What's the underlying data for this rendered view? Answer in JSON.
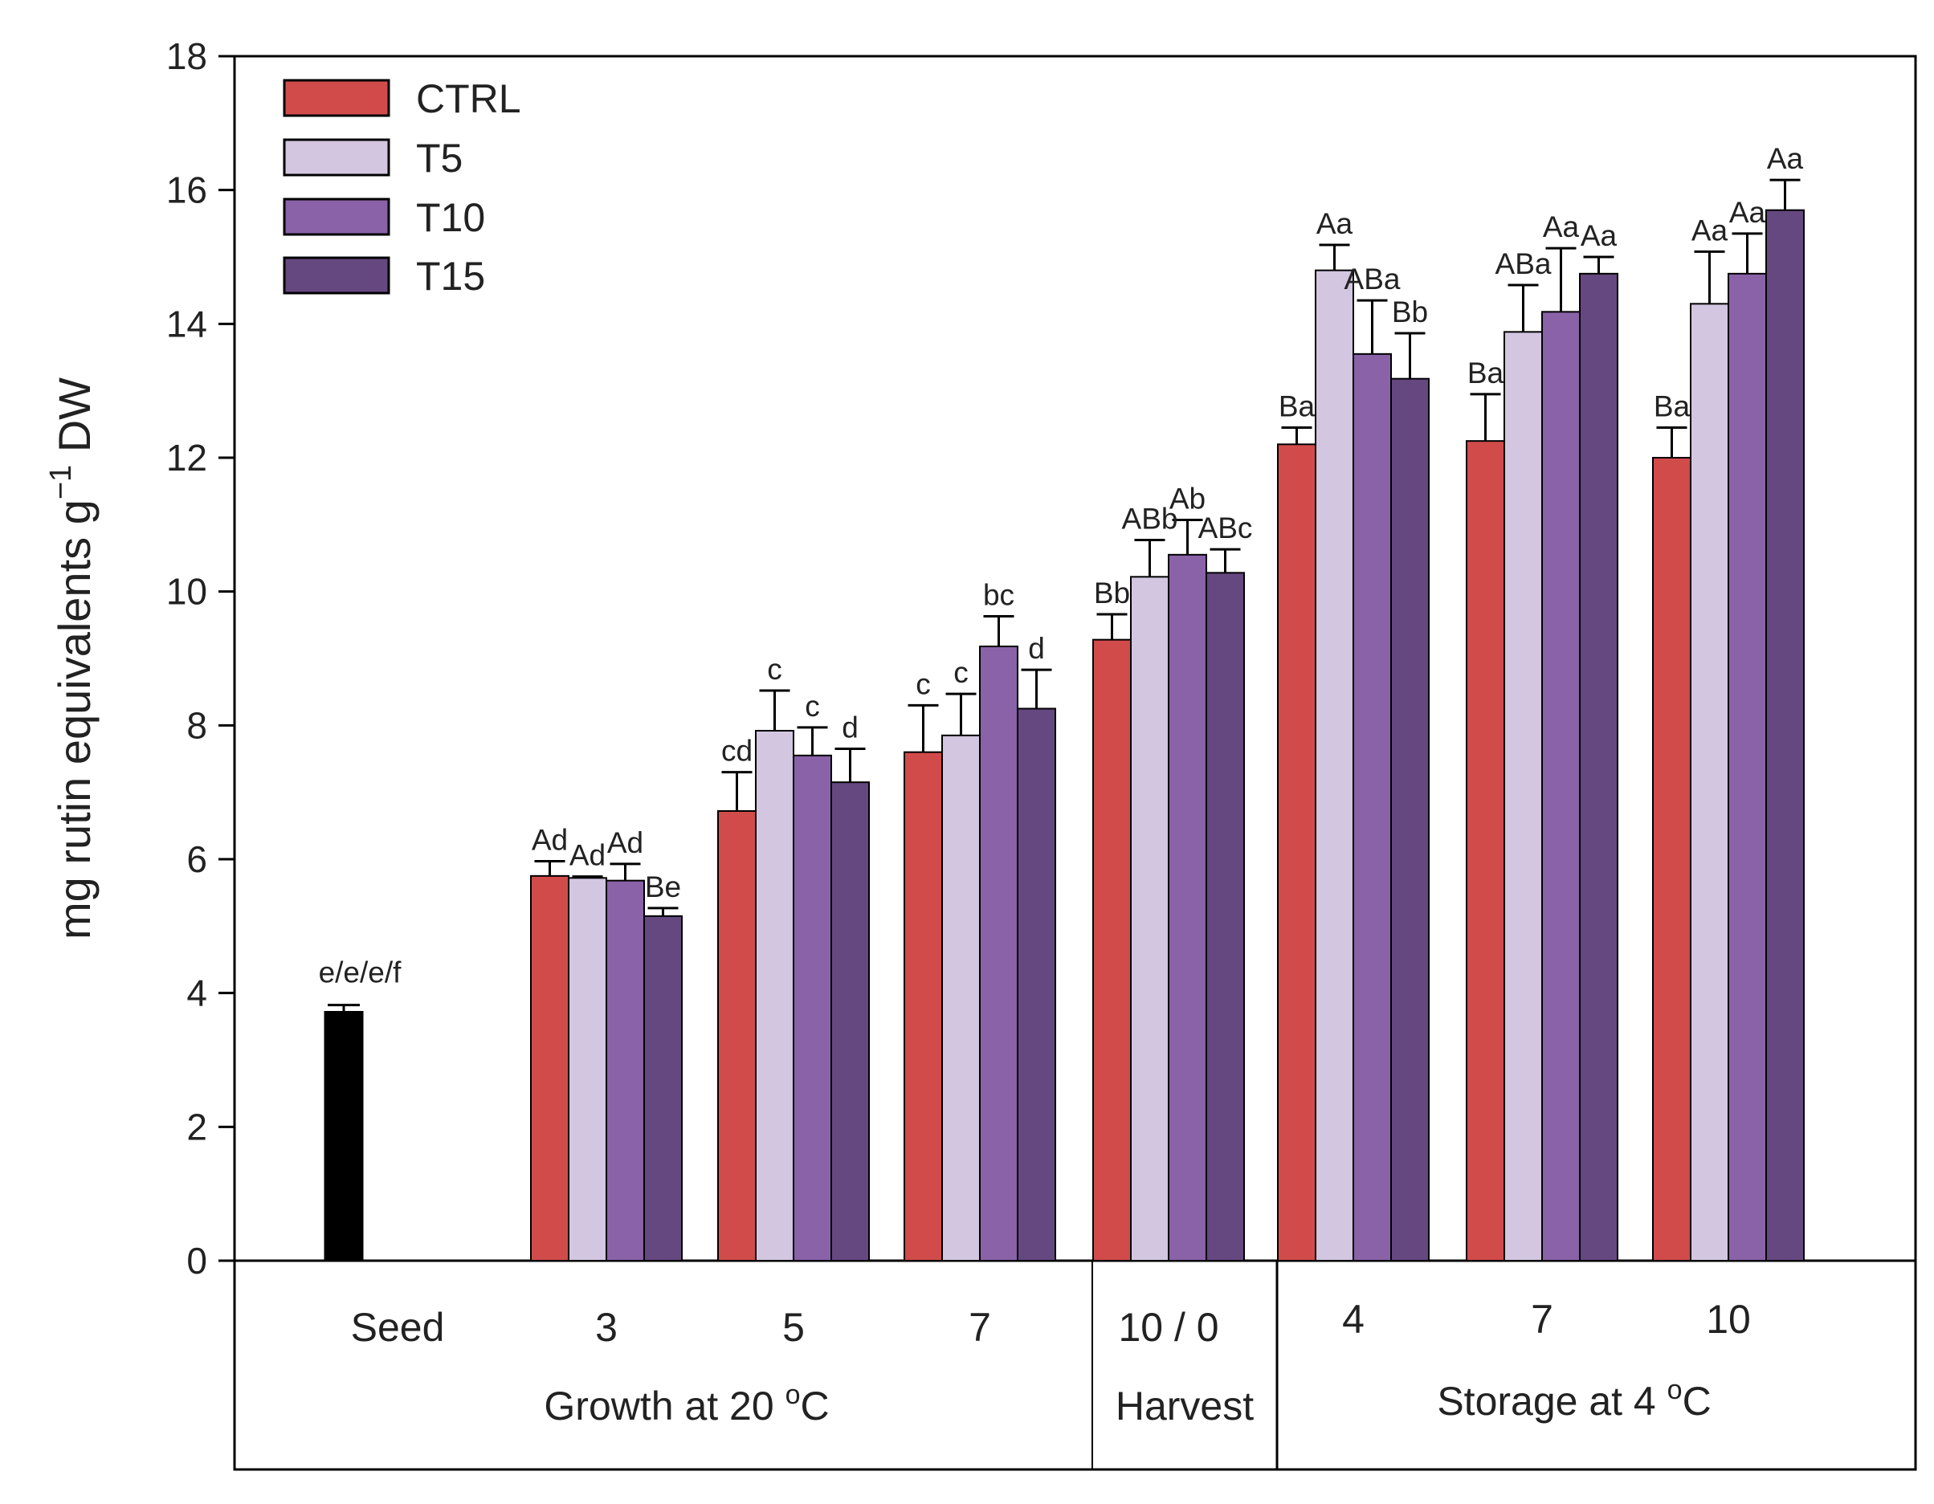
{
  "chart_data": {
    "type": "bar",
    "ylabel_main": "mg rutin equivalents g",
    "ylabel_sup": "−1",
    "ylabel_tail": " DW",
    "ylim": [
      0,
      18
    ],
    "yticks": [
      0,
      2,
      4,
      6,
      8,
      10,
      12,
      14,
      16,
      18
    ],
    "legend_position": "top-left",
    "seed": {
      "label": "Seed",
      "value": 3.72,
      "error": 0.1,
      "annotation": "e/e/e/f",
      "color": "#000000"
    },
    "series": [
      {
        "name": "CTRL",
        "color": "#D24B4B"
      },
      {
        "name": "T5",
        "color": "#D3C6E0"
      },
      {
        "name": "T10",
        "color": "#8A62A8"
      },
      {
        "name": "T15",
        "color": "#654880"
      }
    ],
    "categories": [
      {
        "label": "3",
        "values": [
          5.75,
          5.72,
          5.68,
          5.15
        ],
        "errors": [
          0.22,
          0.02,
          0.25,
          0.12
        ],
        "annotations": [
          "Ad",
          "Ad",
          "Ad",
          "Be"
        ]
      },
      {
        "label": "5",
        "values": [
          6.72,
          7.92,
          7.55,
          7.15
        ],
        "errors": [
          0.58,
          0.6,
          0.42,
          0.5
        ],
        "annotations": [
          "cd",
          "c",
          "c",
          "d"
        ]
      },
      {
        "label": "7",
        "values": [
          7.6,
          7.85,
          9.18,
          8.25
        ],
        "errors": [
          0.7,
          0.62,
          0.45,
          0.58
        ],
        "annotations": [
          "c",
          "c",
          "bc",
          "d"
        ]
      },
      {
        "label": "10 / 0",
        "values": [
          9.28,
          10.22,
          10.55,
          10.28
        ],
        "errors": [
          0.38,
          0.55,
          0.52,
          0.35
        ],
        "annotations": [
          "Bb",
          "ABb",
          "Ab",
          "ABc"
        ]
      },
      {
        "label": "4",
        "values": [
          12.2,
          14.8,
          13.55,
          13.18
        ],
        "errors": [
          0.25,
          0.38,
          0.8,
          0.68
        ],
        "annotations": [
          "Ba",
          "Aa",
          "ABa",
          "Bb"
        ]
      },
      {
        "label": "7",
        "values": [
          12.25,
          13.88,
          14.18,
          14.75
        ],
        "errors": [
          0.7,
          0.7,
          0.95,
          0.25
        ],
        "annotations": [
          "Ba",
          "ABa",
          "Aa",
          "Aa"
        ]
      },
      {
        "label": "10",
        "values": [
          12.0,
          14.3,
          14.75,
          15.7
        ],
        "errors": [
          0.45,
          0.78,
          0.6,
          0.45
        ],
        "annotations": [
          "Ba",
          "Aa",
          "Aa",
          "Aa"
        ]
      }
    ],
    "groups": [
      {
        "label": "Growth at 20 ",
        "sup": "o",
        "unit": "C"
      },
      {
        "label": "Harvest",
        "sup": "",
        "unit": ""
      },
      {
        "label": "Storage at 4 ",
        "sup": "o",
        "unit": "C"
      }
    ]
  }
}
